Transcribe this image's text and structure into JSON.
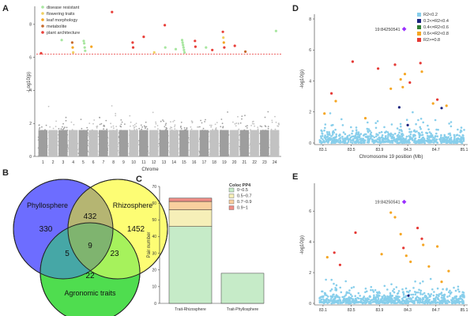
{
  "panels": {
    "A": "A",
    "B": "B",
    "C": "C",
    "D": "D",
    "E": "E"
  },
  "chart_data": [
    {
      "panel": "A",
      "type": "scatter",
      "subtype": "manhattan",
      "xlabel": "Chrome",
      "ylabel": "-Log10(p)",
      "ylim": [
        0,
        9
      ],
      "yticks": [
        0,
        2,
        4,
        6,
        8
      ],
      "categories": [
        "1",
        "2",
        "3",
        "4",
        "5",
        "6",
        "7",
        "8",
        "9",
        "10",
        "11",
        "12",
        "13",
        "14",
        "15",
        "16",
        "17",
        "18",
        "19",
        "20",
        "21",
        "22",
        "23",
        "24"
      ],
      "threshold": 6.2,
      "legend": [
        {
          "label": "disease resistant",
          "color": "#a8e6a0"
        },
        {
          "label": "flowering traits",
          "color": "#f0d060"
        },
        {
          "label": "leaf morphology",
          "color": "#f5a623"
        },
        {
          "label": "metabolite",
          "color": "#c66a2d"
        },
        {
          "label": "plant architecture",
          "color": "#e8403a"
        }
      ],
      "highlight_points": [
        {
          "chr": 1,
          "y": 6.25,
          "cls": 4
        },
        {
          "chr": 3,
          "y": 7.05,
          "cls": 0
        },
        {
          "chr": 4,
          "y": 6.9,
          "cls": 3
        },
        {
          "chr": 4,
          "y": 6.6,
          "cls": 2
        },
        {
          "chr": 4,
          "y": 6.3,
          "cls": 1
        },
        {
          "chr": 5,
          "y": 7.0,
          "cls": 0
        },
        {
          "chr": 5,
          "y": 6.85,
          "cls": 0
        },
        {
          "chr": 5,
          "y": 6.6,
          "cls": 0
        },
        {
          "chr": 5,
          "y": 6.4,
          "cls": 0
        },
        {
          "chr": 6,
          "y": 6.65,
          "cls": 2
        },
        {
          "chr": 8,
          "y": 8.75,
          "cls": 4
        },
        {
          "chr": 10,
          "y": 6.9,
          "cls": 4
        },
        {
          "chr": 10,
          "y": 6.6,
          "cls": 4
        },
        {
          "chr": 11,
          "y": 7.25,
          "cls": 4
        },
        {
          "chr": 12,
          "y": 6.3,
          "cls": 1
        },
        {
          "chr": 13,
          "y": 7.95,
          "cls": 4
        },
        {
          "chr": 13,
          "y": 6.6,
          "cls": 0
        },
        {
          "chr": 14,
          "y": 6.5,
          "cls": 0
        },
        {
          "chr": 15,
          "y": 7.05,
          "cls": 0
        },
        {
          "chr": 15,
          "y": 6.9,
          "cls": 0
        },
        {
          "chr": 15,
          "y": 6.75,
          "cls": 0
        },
        {
          "chr": 15,
          "y": 6.6,
          "cls": 0
        },
        {
          "chr": 15,
          "y": 6.45,
          "cls": 0
        },
        {
          "chr": 15,
          "y": 6.3,
          "cls": 0
        },
        {
          "chr": 16,
          "y": 7.0,
          "cls": 4
        },
        {
          "chr": 16,
          "y": 6.65,
          "cls": 4
        },
        {
          "chr": 17,
          "y": 6.6,
          "cls": 0
        },
        {
          "chr": 18,
          "y": 6.45,
          "cls": 4
        },
        {
          "chr": 19,
          "y": 7.55,
          "cls": 4
        },
        {
          "chr": 19,
          "y": 7.2,
          "cls": 1
        },
        {
          "chr": 19,
          "y": 6.9,
          "cls": 2
        },
        {
          "chr": 19,
          "y": 6.6,
          "cls": 4
        },
        {
          "chr": 20,
          "y": 6.7,
          "cls": 4
        },
        {
          "chr": 21,
          "y": 6.35,
          "cls": 3
        },
        {
          "chr": 24,
          "y": 7.6,
          "cls": 0
        }
      ]
    },
    {
      "panel": "B",
      "type": "venn",
      "sets": [
        "Phyllosphere",
        "Rhizosphere",
        "Agronomic traits"
      ],
      "regions": {
        "phyllo_only": 330,
        "rhizo_only": 1452,
        "agro_only": 22,
        "phyllo_rhizo": 432,
        "phyllo_agro": 5,
        "rhizo_agro": 23,
        "all_three": 9
      }
    },
    {
      "panel": "C",
      "type": "bar",
      "subtype": "stacked",
      "ylabel": "Pair number",
      "ylim": [
        0,
        70
      ],
      "yticks": [
        0,
        10,
        20,
        30,
        40,
        50,
        60,
        70
      ],
      "categories": [
        "Trait-Rhizosphere",
        "Trait-Phyllosphere"
      ],
      "legend_title": "Coloc PP4",
      "series": [
        {
          "name": "0~0.5",
          "color": "#c6ebc8",
          "values": [
            46,
            18
          ]
        },
        {
          "name": "0.5~0.7",
          "color": "#f6efb8",
          "values": [
            10,
            0
          ]
        },
        {
          "name": "0.7~0.9",
          "color": "#f9cf9e",
          "values": [
            5,
            0
          ]
        },
        {
          "name": "0.9~1",
          "color": "#ee8d86",
          "values": [
            2,
            0
          ]
        }
      ]
    },
    {
      "panel": "D",
      "type": "scatter",
      "subtype": "regional-association",
      "xlabel": "Chromosome 19 position (Mb)",
      "ylabel": "-log10(p)",
      "xlim": [
        83.0,
        85.15
      ],
      "xticks": [
        83.1,
        83.5,
        83.9,
        84.3,
        84.7,
        85.1
      ],
      "ylim": [
        0,
        8
      ],
      "yticks": [
        0,
        2,
        4,
        6,
        8
      ],
      "lead_snp": {
        "label": "19:84250541",
        "x": 84.25,
        "y": 7.35
      },
      "legend": [
        {
          "label": "R2<0.2",
          "color": "#87ceeb"
        },
        {
          "label": "0.2<=R2<0.4",
          "color": "#1a237e"
        },
        {
          "label": "0.4<=R2<0.6",
          "color": "#2e7d32"
        },
        {
          "label": "0.6<=R2<0.8",
          "color": "#f5a623"
        },
        {
          "label": "R2>=0.8",
          "color": "#e53935"
        }
      ],
      "colored_points": [
        {
          "x": 83.12,
          "y": 1.9,
          "cls": 3
        },
        {
          "x": 83.22,
          "y": 3.2,
          "cls": 4
        },
        {
          "x": 83.28,
          "y": 2.7,
          "cls": 3
        },
        {
          "x": 83.52,
          "y": 5.25,
          "cls": 4
        },
        {
          "x": 83.7,
          "y": 1.6,
          "cls": 3
        },
        {
          "x": 83.88,
          "y": 4.8,
          "cls": 4
        },
        {
          "x": 84.06,
          "y": 3.5,
          "cls": 3
        },
        {
          "x": 84.12,
          "y": 5.05,
          "cls": 4
        },
        {
          "x": 84.18,
          "y": 2.3,
          "cls": 1
        },
        {
          "x": 84.2,
          "y": 4.1,
          "cls": 3
        },
        {
          "x": 84.23,
          "y": 3.6,
          "cls": 3
        },
        {
          "x": 84.26,
          "y": 4.45,
          "cls": 3
        },
        {
          "x": 84.3,
          "y": 1.15,
          "cls": 1
        },
        {
          "x": 84.33,
          "y": 3.9,
          "cls": 4
        },
        {
          "x": 84.48,
          "y": 5.15,
          "cls": 4
        },
        {
          "x": 84.5,
          "y": 4.6,
          "cls": 3
        },
        {
          "x": 84.66,
          "y": 2.55,
          "cls": 3
        },
        {
          "x": 84.72,
          "y": 2.8,
          "cls": 4
        },
        {
          "x": 84.78,
          "y": 2.25,
          "cls": 1
        },
        {
          "x": 84.85,
          "y": 2.4,
          "cls": 3
        }
      ]
    },
    {
      "panel": "E",
      "type": "scatter",
      "subtype": "regional-association",
      "xlabel": "",
      "ylabel": "-log10(p)",
      "xlim": [
        83.0,
        85.15
      ],
      "xticks": [
        83.1,
        83.5,
        83.9,
        84.3,
        84.7,
        85.1
      ],
      "ylim": [
        0,
        7.5
      ],
      "yticks": [
        0,
        2,
        4,
        6
      ],
      "lead_snp": {
        "label": "19:84250541",
        "x": 84.25,
        "y": 6.6
      },
      "colored_points": [
        {
          "x": 83.16,
          "y": 3.0,
          "cls": 3
        },
        {
          "x": 83.26,
          "y": 3.3,
          "cls": 4
        },
        {
          "x": 83.34,
          "y": 2.5,
          "cls": 4
        },
        {
          "x": 83.56,
          "y": 4.6,
          "cls": 4
        },
        {
          "x": 83.93,
          "y": 3.2,
          "cls": 3
        },
        {
          "x": 84.06,
          "y": 5.9,
          "cls": 3
        },
        {
          "x": 84.12,
          "y": 5.6,
          "cls": 3
        },
        {
          "x": 84.2,
          "y": 4.5,
          "cls": 3
        },
        {
          "x": 84.24,
          "y": 3.6,
          "cls": 4
        },
        {
          "x": 84.28,
          "y": 3.1,
          "cls": 3
        },
        {
          "x": 84.31,
          "y": 0.5,
          "cls": 1
        },
        {
          "x": 84.34,
          "y": 2.7,
          "cls": 3
        },
        {
          "x": 84.44,
          "y": 4.9,
          "cls": 4
        },
        {
          "x": 84.5,
          "y": 4.2,
          "cls": 4
        },
        {
          "x": 84.52,
          "y": 3.8,
          "cls": 3
        },
        {
          "x": 84.6,
          "y": 2.4,
          "cls": 3
        },
        {
          "x": 84.72,
          "y": 3.7,
          "cls": 3
        },
        {
          "x": 84.78,
          "y": 1.4,
          "cls": 3
        },
        {
          "x": 84.88,
          "y": 2.1,
          "cls": 3
        }
      ]
    }
  ]
}
